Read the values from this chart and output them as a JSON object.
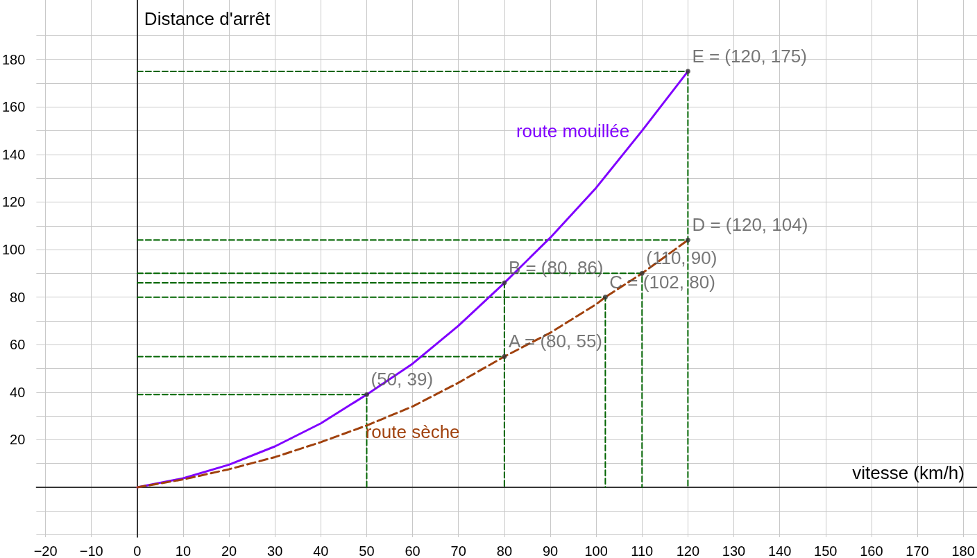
{
  "chart_data": {
    "type": "line",
    "xlabel": "vitesse (km/h)",
    "ylabel": "Distance d'arrêt",
    "xlim": [
      -22,
      183
    ],
    "ylim": [
      -21,
      205
    ],
    "xticks": [
      {
        "value": -20,
        "label": "−20"
      },
      {
        "value": -10,
        "label": "−10"
      },
      0,
      10,
      20,
      30,
      40,
      50,
      60,
      70,
      80,
      90,
      100,
      110,
      120,
      130,
      140,
      150,
      160,
      170,
      180
    ],
    "yticks": [
      {
        "value": -20,
        "label": null
      },
      {
        "value": -10,
        "label": null
      },
      {
        "value": 0,
        "label": null
      },
      {
        "value": 10,
        "label": null
      },
      20,
      {
        "value": 30,
        "label": null
      },
      40,
      {
        "value": 50,
        "label": null
      },
      60,
      {
        "value": 70,
        "label": null
      },
      80,
      {
        "value": 90,
        "label": null
      },
      100,
      {
        "value": 110,
        "label": null
      },
      120,
      {
        "value": 130,
        "label": null
      },
      140,
      {
        "value": 150,
        "label": null
      },
      160,
      {
        "value": 170,
        "label": null
      },
      180,
      {
        "value": 190,
        "label": null
      }
    ],
    "grid": true,
    "legend": false,
    "series": [
      {
        "name": "route mouillée",
        "color": "#8000ff",
        "line_style": "solid",
        "marker": "none",
        "x": [
          0,
          10,
          20,
          30,
          40,
          50,
          60,
          70,
          80,
          90,
          100,
          110,
          120
        ],
        "values": [
          0,
          3.8,
          9.5,
          17.2,
          26.9,
          39,
          52,
          68,
          86,
          105,
          126,
          150,
          175
        ]
      },
      {
        "name": "route sèche",
        "color": "#a0410d",
        "line_style": "dashed",
        "marker": "none",
        "x": [
          0,
          10,
          20,
          30,
          40,
          50,
          60,
          70,
          80,
          90,
          100,
          102,
          110,
          120
        ],
        "values": [
          0,
          3.3,
          7.6,
          12.7,
          19,
          26,
          34,
          44,
          55,
          65,
          77,
          80,
          90,
          104
        ]
      },
      {
        "type": "line",
        "color": "#006400",
        "line_style": "dashed",
        "marker": "none",
        "x": [
          0,
          50,
          50,
          null,
          0,
          80,
          80,
          null,
          0,
          80,
          80,
          null,
          0,
          102,
          102,
          null,
          0,
          110,
          110,
          null,
          0,
          120,
          120,
          null,
          0,
          120,
          120
        ],
        "values": [
          39,
          39,
          0,
          null,
          55,
          55,
          0,
          null,
          86,
          86,
          55,
          null,
          80,
          80,
          0,
          null,
          90,
          90,
          0,
          null,
          104,
          104,
          0,
          null,
          175,
          175,
          104
        ]
      },
      {
        "type": "scatter",
        "color": "#333333",
        "marker": "circle",
        "x": [
          50,
          80,
          80,
          102,
          110,
          120,
          120
        ],
        "values": [
          39,
          86,
          55,
          80,
          90,
          104,
          175
        ]
      }
    ],
    "annotations": [
      {
        "text": "(50, 39)",
        "x": 50,
        "y": 39
      },
      {
        "text": "B = (80, 86)",
        "x": 80,
        "y": 86
      },
      {
        "text": "A = (80, 55)",
        "x": 80,
        "y": 55
      },
      {
        "text": "C = (102, 80)",
        "x": 102,
        "y": 80
      },
      {
        "text": "(110, 90)",
        "x": 110,
        "y": 90
      },
      {
        "text": "D = (120, 104)",
        "x": 120,
        "y": 104
      },
      {
        "text": "E = (120, 175)",
        "x": 120,
        "y": 175
      }
    ]
  }
}
